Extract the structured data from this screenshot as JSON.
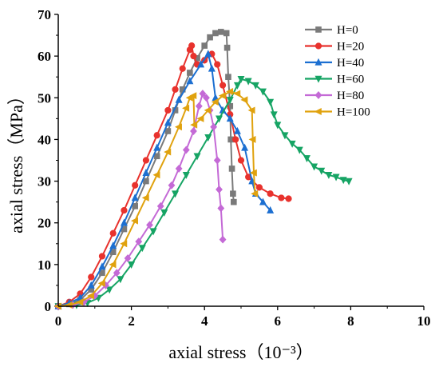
{
  "chart_data": {
    "type": "line",
    "xlabel": "axial stress（10⁻³）",
    "ylabel": "axial stress（MPa）",
    "xlim": [
      0,
      10
    ],
    "ylim": [
      0,
      70
    ],
    "x_ticks": [
      "0",
      "2",
      "4",
      "6",
      "8",
      "10"
    ],
    "y_ticks": [
      "0",
      "10",
      "20",
      "30",
      "40",
      "50",
      "60",
      "70"
    ],
    "legend_position": "top-right",
    "series": [
      {
        "name": "H=0",
        "color": "#7a7a7a",
        "marker": "square",
        "points": [
          [
            0,
            0
          ],
          [
            0.3,
            0.5
          ],
          [
            0.6,
            1.5
          ],
          [
            0.9,
            4
          ],
          [
            1.2,
            8
          ],
          [
            1.5,
            13
          ],
          [
            1.8,
            18.5
          ],
          [
            2.1,
            24
          ],
          [
            2.4,
            30
          ],
          [
            2.7,
            36
          ],
          [
            3.0,
            42
          ],
          [
            3.2,
            47
          ],
          [
            3.4,
            52
          ],
          [
            3.6,
            56
          ],
          [
            3.8,
            59.5
          ],
          [
            4.0,
            62.5
          ],
          [
            4.15,
            64.5
          ],
          [
            4.3,
            65.5
          ],
          [
            4.45,
            65.8
          ],
          [
            4.6,
            65.5
          ],
          [
            4.62,
            62
          ],
          [
            4.65,
            55
          ],
          [
            4.7,
            48
          ],
          [
            4.72,
            40
          ],
          [
            4.75,
            33
          ],
          [
            4.78,
            27
          ],
          [
            4.8,
            25
          ]
        ]
      },
      {
        "name": "H=20",
        "color": "#e8322d",
        "marker": "circle",
        "points": [
          [
            0,
            0
          ],
          [
            0.3,
            1
          ],
          [
            0.6,
            3
          ],
          [
            0.9,
            7
          ],
          [
            1.2,
            12
          ],
          [
            1.5,
            17.5
          ],
          [
            1.8,
            23
          ],
          [
            2.1,
            29
          ],
          [
            2.4,
            35
          ],
          [
            2.7,
            41
          ],
          [
            3.0,
            47
          ],
          [
            3.2,
            52
          ],
          [
            3.4,
            57
          ],
          [
            3.6,
            61.5
          ],
          [
            3.65,
            62.5
          ],
          [
            3.7,
            60
          ],
          [
            3.8,
            58
          ],
          [
            4.0,
            59
          ],
          [
            4.2,
            60.5
          ],
          [
            4.35,
            58
          ],
          [
            4.5,
            53
          ],
          [
            4.7,
            46
          ],
          [
            4.85,
            40
          ],
          [
            5.0,
            35
          ],
          [
            5.2,
            31
          ],
          [
            5.5,
            28.5
          ],
          [
            5.8,
            27
          ],
          [
            6.1,
            26
          ],
          [
            6.3,
            25.8
          ]
        ]
      },
      {
        "name": "H=40",
        "color": "#1c6fd1",
        "marker": "triangle-up",
        "points": [
          [
            0,
            0
          ],
          [
            0.3,
            0.8
          ],
          [
            0.6,
            2
          ],
          [
            0.9,
            5
          ],
          [
            1.2,
            9.5
          ],
          [
            1.5,
            14.5
          ],
          [
            1.8,
            20
          ],
          [
            2.1,
            26
          ],
          [
            2.4,
            32
          ],
          [
            2.7,
            38
          ],
          [
            3.0,
            44
          ],
          [
            3.3,
            49.5
          ],
          [
            3.6,
            54
          ],
          [
            3.9,
            58
          ],
          [
            4.1,
            60.5
          ],
          [
            4.2,
            57
          ],
          [
            4.3,
            50
          ],
          [
            4.5,
            47
          ],
          [
            4.7,
            45
          ],
          [
            4.9,
            42
          ],
          [
            5.1,
            38
          ],
          [
            5.3,
            30
          ],
          [
            5.4,
            27
          ],
          [
            5.6,
            25
          ],
          [
            5.8,
            23
          ]
        ]
      },
      {
        "name": "H=60",
        "color": "#16a464",
        "marker": "triangle-down",
        "points": [
          [
            0,
            0
          ],
          [
            0.5,
            0.3
          ],
          [
            0.8,
            0.8
          ],
          [
            1.1,
            2
          ],
          [
            1.4,
            4
          ],
          [
            1.7,
            6.5
          ],
          [
            2.0,
            10
          ],
          [
            2.3,
            14
          ],
          [
            2.6,
            18
          ],
          [
            2.9,
            22.5
          ],
          [
            3.2,
            27
          ],
          [
            3.5,
            31.5
          ],
          [
            3.8,
            36
          ],
          [
            4.1,
            40.5
          ],
          [
            4.4,
            45
          ],
          [
            4.7,
            49.5
          ],
          [
            4.9,
            53
          ],
          [
            5.0,
            54.5
          ],
          [
            5.2,
            54
          ],
          [
            5.4,
            53
          ],
          [
            5.6,
            51.5
          ],
          [
            5.8,
            49
          ],
          [
            5.9,
            46
          ],
          [
            6.0,
            43.5
          ],
          [
            6.2,
            41
          ],
          [
            6.4,
            39
          ],
          [
            6.6,
            37.5
          ],
          [
            6.8,
            35.5
          ],
          [
            7.0,
            33.5
          ],
          [
            7.2,
            32.5
          ],
          [
            7.4,
            31.5
          ],
          [
            7.6,
            31
          ],
          [
            7.8,
            30.3
          ],
          [
            7.95,
            30
          ]
        ]
      },
      {
        "name": "H=80",
        "color": "#c46ad6",
        "marker": "diamond",
        "points": [
          [
            0,
            0
          ],
          [
            0.4,
            0.3
          ],
          [
            0.7,
            1
          ],
          [
            1.0,
            2.5
          ],
          [
            1.3,
            5
          ],
          [
            1.6,
            8
          ],
          [
            1.9,
            11.5
          ],
          [
            2.2,
            15.5
          ],
          [
            2.5,
            19.5
          ],
          [
            2.8,
            24
          ],
          [
            3.1,
            29
          ],
          [
            3.3,
            33
          ],
          [
            3.5,
            37.5
          ],
          [
            3.7,
            42
          ],
          [
            3.85,
            48
          ],
          [
            3.95,
            51
          ],
          [
            4.05,
            50
          ],
          [
            4.15,
            47
          ],
          [
            4.25,
            43
          ],
          [
            4.35,
            35
          ],
          [
            4.4,
            28
          ],
          [
            4.45,
            23.5
          ],
          [
            4.5,
            16
          ]
        ]
      },
      {
        "name": "H=100",
        "color": "#e0a20e",
        "marker": "triangle-left",
        "points": [
          [
            0,
            0
          ],
          [
            0.3,
            0.3
          ],
          [
            0.6,
            1
          ],
          [
            0.9,
            2.5
          ],
          [
            1.2,
            5.5
          ],
          [
            1.5,
            10
          ],
          [
            1.8,
            15
          ],
          [
            2.1,
            20.5
          ],
          [
            2.4,
            26
          ],
          [
            2.7,
            31.5
          ],
          [
            3.0,
            37
          ],
          [
            3.3,
            43
          ],
          [
            3.5,
            47.5
          ],
          [
            3.6,
            50
          ],
          [
            3.7,
            50.5
          ],
          [
            3.72,
            43.5
          ],
          [
            3.9,
            45
          ],
          [
            4.1,
            47
          ],
          [
            4.3,
            49
          ],
          [
            4.5,
            50.5
          ],
          [
            4.7,
            51.5
          ],
          [
            4.9,
            51
          ],
          [
            5.1,
            49.5
          ],
          [
            5.3,
            47
          ],
          [
            5.32,
            40
          ],
          [
            5.35,
            32
          ],
          [
            5.38,
            27
          ]
        ]
      }
    ]
  }
}
